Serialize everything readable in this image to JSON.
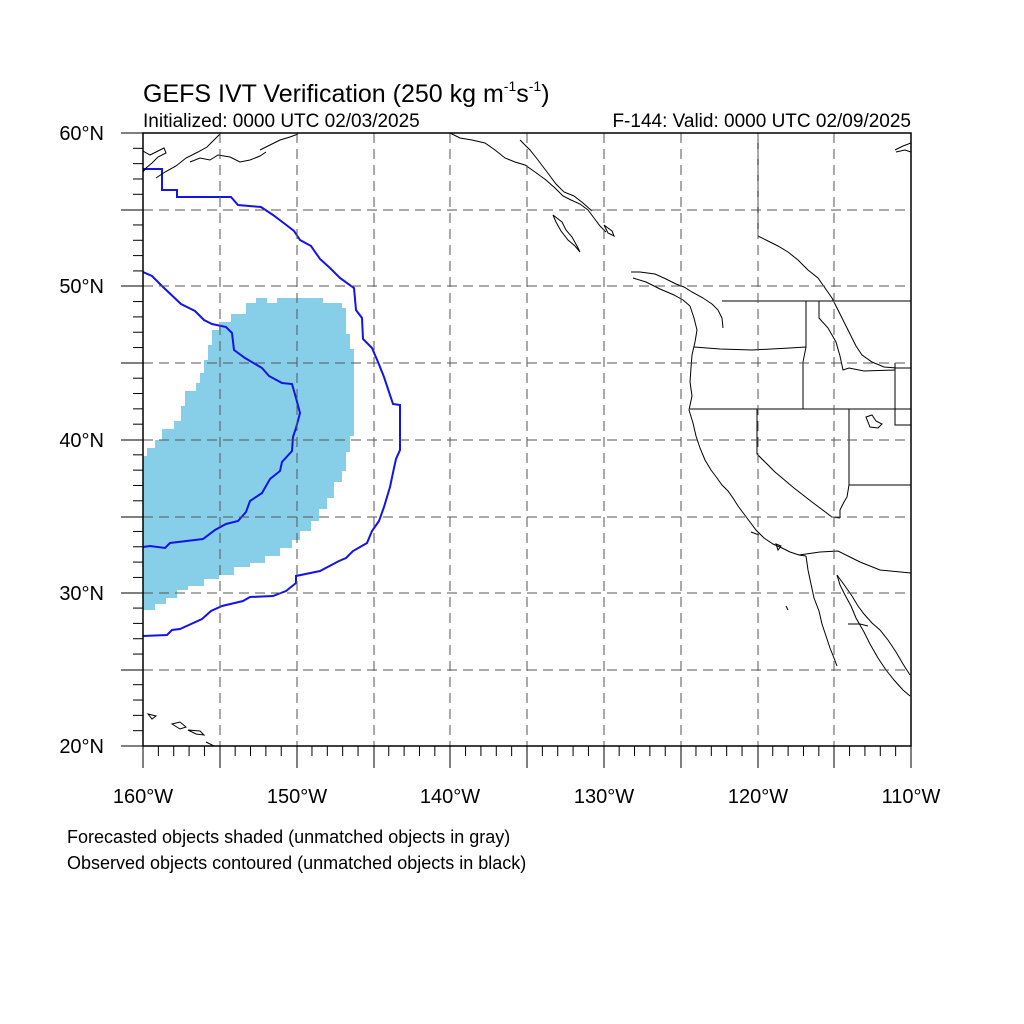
{
  "title": {
    "main": "GEFS IVT Verification (250 kg m",
    "sup1": "-1",
    "mid": "s",
    "sup2": "-1",
    "end": ")"
  },
  "init_text": "Initialized: 0000 UTC 02/03/2025",
  "valid_text": "F-144: Valid: 0000 UTC 02/09/2025",
  "lat_labels": [
    "60°N",
    "50°N",
    "40°N",
    "30°N",
    "20°N"
  ],
  "lon_labels": [
    "160°W",
    "150°W",
    "140°W",
    "130°W",
    "120°W",
    "110°W"
  ],
  "captions": [
    "Forecasted objects shaded (unmatched objects in gray)",
    "Observed objects contoured (unmatched objects in black)"
  ],
  "colors": {
    "forecast_fill": "#87CEE8",
    "observed_contour": "#1414E6",
    "coastline": "#000000",
    "grid": "#555555"
  },
  "map_extent": {
    "lon_min": -160,
    "lon_max": -110,
    "lat_min": 20,
    "lat_max": 60
  }
}
